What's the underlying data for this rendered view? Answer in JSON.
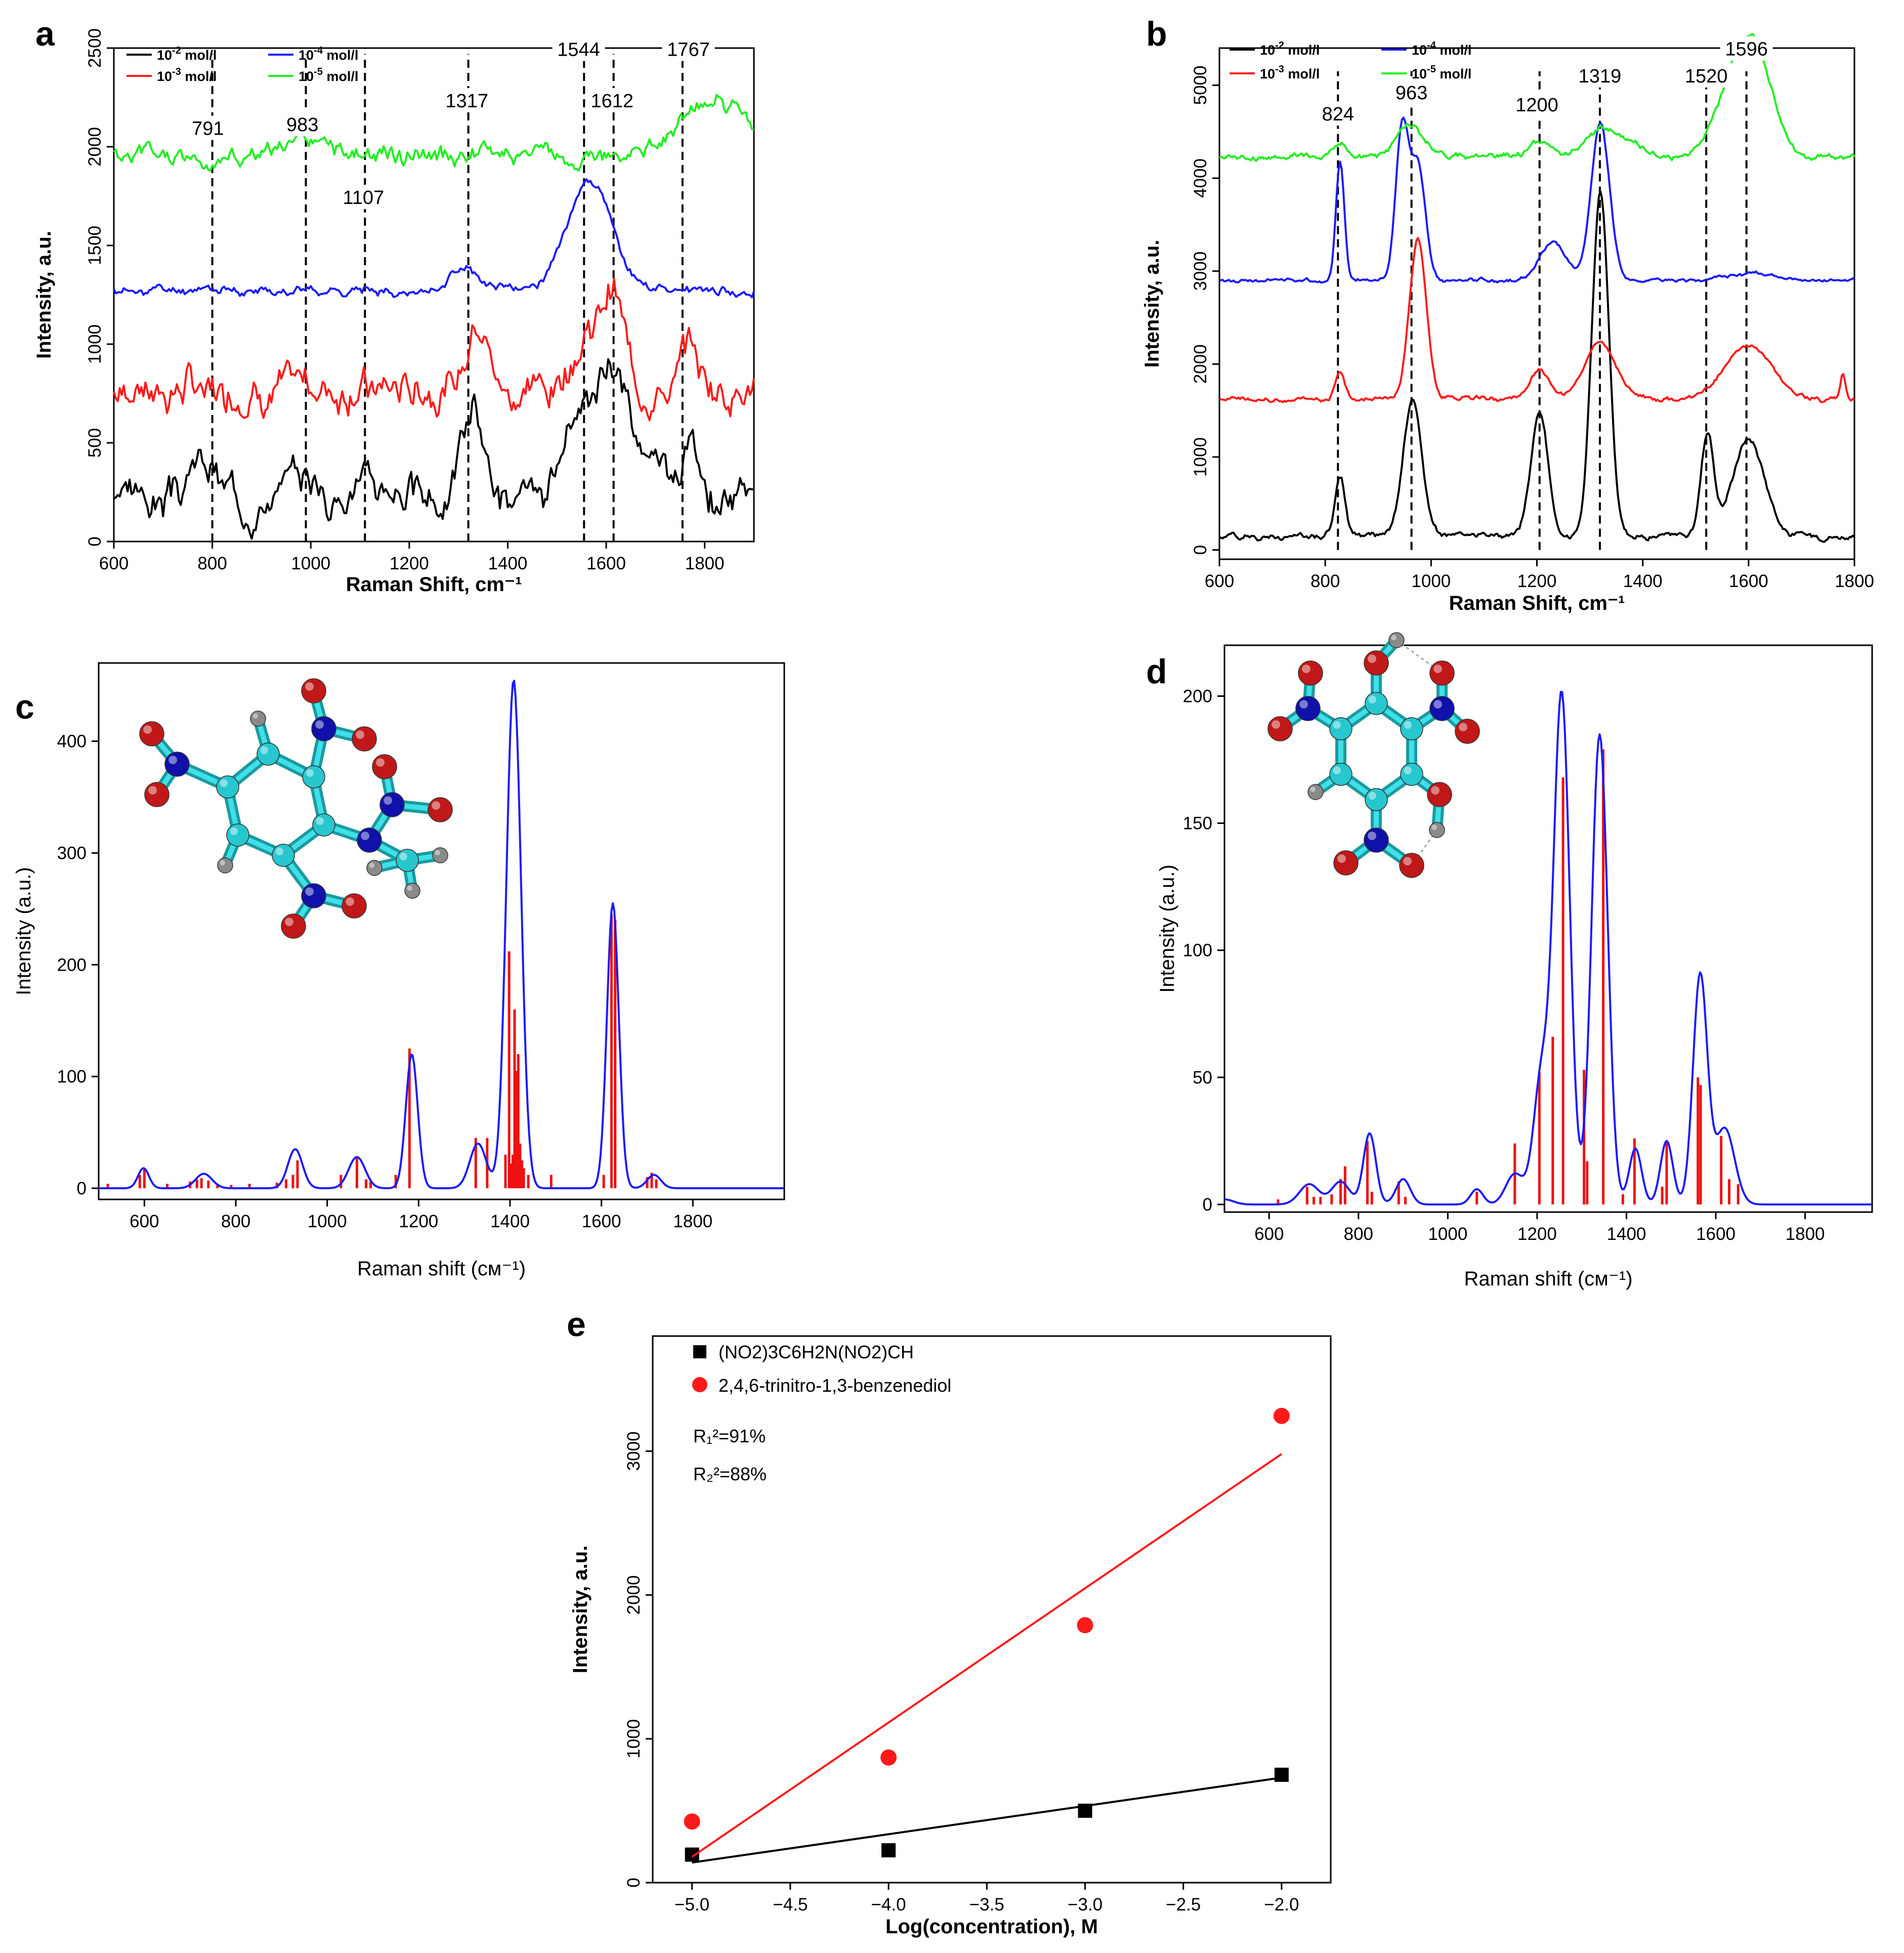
{
  "colors": {
    "black": "#000000",
    "red": "#ff1a1a",
    "blue": "#1a1aff",
    "green": "#22ee22",
    "stick": "#ee1111",
    "atomC": "#27c7cf",
    "atomN": "#1010aa",
    "atomO": "#c01818",
    "atomH": "#8a8a8a"
  },
  "chart_data": [
    {
      "panel": "a",
      "type": "line",
      "xlabel": "Raman Shift, cm⁻¹",
      "ylabel": "Intensity, a.u.",
      "xlim": [
        600,
        1900
      ],
      "ylim": [
        0,
        2500
      ],
      "xticks": [
        "600",
        "800",
        "1000",
        "1200",
        "1400",
        "1600",
        "1800"
      ],
      "yticks": [
        "0",
        "500",
        "1000",
        "1500",
        "2000",
        "2500"
      ],
      "legend": [
        {
          "base": "10",
          "exp": "-2",
          "unit": " mol/l",
          "color": "black"
        },
        {
          "base": "10",
          "exp": "-4",
          "unit": " mol/l",
          "color": "blue"
        },
        {
          "base": "10",
          "exp": "-3",
          "unit": " mol/l",
          "color": "red"
        },
        {
          "base": "10",
          "exp": "-5",
          "unit": " mol/l",
          "color": "green"
        }
      ],
      "peak_lines": [
        800,
        990,
        1110,
        1320,
        1555,
        1615,
        1755
      ],
      "peak_labels": [
        {
          "text": "791",
          "x": 791,
          "y": 2060
        },
        {
          "text": "983",
          "x": 983,
          "y": 2080
        },
        {
          "text": "1107",
          "x": 1107,
          "y": 1710
        },
        {
          "text": "1317",
          "x": 1317,
          "y": 2200
        },
        {
          "text": "1544",
          "x": 1544,
          "y": 2460
        },
        {
          "text": "1612",
          "x": 1612,
          "y": 2200
        },
        {
          "text": "1767",
          "x": 1767,
          "y": 2460
        }
      ],
      "series": [
        {
          "name": "10-2 mol/l",
          "color": "black",
          "base": 220,
          "noise": 120,
          "seed": 3,
          "peaks": [
            [
              780,
              180,
              25
            ],
            [
              990,
              130,
              30
            ],
            [
              1110,
              120,
              30
            ],
            [
              1330,
              480,
              22
            ],
            [
              1570,
              460,
              40
            ],
            [
              1620,
              430,
              25
            ],
            [
              1700,
              200,
              40
            ],
            [
              1770,
              280,
              15
            ]
          ]
        },
        {
          "name": "10-3 mol/l",
          "color": "red",
          "base": 780,
          "noise": 120,
          "seed": 7,
          "peaks": [
            [
              1340,
              420,
              20
            ],
            [
              1560,
              300,
              30
            ],
            [
              1615,
              420,
              20
            ],
            [
              1770,
              220,
              15
            ]
          ]
        },
        {
          "name": "10-4 mol/l",
          "color": "blue",
          "base": 1270,
          "noise": 30,
          "seed": 11,
          "peaks": [
            [
              1310,
              120,
              25
            ],
            [
              1565,
              560,
              45
            ]
          ]
        },
        {
          "name": "10-5 mol/l",
          "color": "green",
          "base": 1950,
          "noise": 60,
          "seed": 5,
          "peaks": [
            [
              1000,
              60,
              40
            ],
            [
              1420,
              40,
              50
            ],
            [
              1780,
              150,
              60
            ],
            [
              1850,
              170,
              60
            ]
          ]
        }
      ]
    },
    {
      "panel": "b",
      "type": "line",
      "xlabel": "Raman Shift, cm⁻¹",
      "ylabel": "Intensity, a.u.",
      "xlim": [
        600,
        1800
      ],
      "ylim": [
        -100,
        5400
      ],
      "xticks": [
        "600",
        "800",
        "1000",
        "1200",
        "1400",
        "1600",
        "1800"
      ],
      "yticks": [
        "0",
        "1000",
        "2000",
        "3000",
        "4000",
        "5000"
      ],
      "legend": [
        {
          "base": "10",
          "exp": "-2",
          "unit": " mol/l",
          "color": "black"
        },
        {
          "base": "10",
          "exp": "-4",
          "unit": " mol/l",
          "color": "blue"
        },
        {
          "base": "10",
          "exp": "-3",
          "unit": " mol/l",
          "color": "red"
        },
        {
          "base": "10",
          "exp": "-5",
          "unit": " mol/l",
          "color": "green"
        }
      ],
      "peak_lines": [
        824,
        963,
        1205,
        1319,
        1520,
        1596
      ],
      "peak_labels": [
        {
          "text": "824",
          "x": 824,
          "y": 4620
        },
        {
          "text": "963",
          "x": 963,
          "y": 4850
        },
        {
          "text": "1200",
          "x": 1200,
          "y": 4720
        },
        {
          "text": "1319",
          "x": 1319,
          "y": 5030
        },
        {
          "text": "1520",
          "x": 1520,
          "y": 5030
        },
        {
          "text": "1596",
          "x": 1596,
          "y": 5320
        }
      ],
      "series": [
        {
          "name": "10-2 mol/l",
          "color": "black",
          "base": 150,
          "noise": 40,
          "seed": 2,
          "peaks": [
            [
              828,
              650,
              9
            ],
            [
              965,
              1450,
              18
            ],
            [
              1205,
              1350,
              16
            ],
            [
              1320,
              3700,
              16
            ],
            [
              1522,
              1100,
              12
            ],
            [
              1600,
              1050,
              30
            ]
          ]
        },
        {
          "name": "10-3 mol/l",
          "color": "red",
          "base": 1620,
          "noise": 30,
          "seed": 9,
          "peaks": [
            [
              828,
              300,
              9
            ],
            [
              975,
              1720,
              16
            ],
            [
              1205,
              320,
              18
            ],
            [
              1320,
              620,
              30
            ],
            [
              1600,
              580,
              45
            ],
            [
              1778,
              280,
              5
            ]
          ]
        },
        {
          "name": "10-4 mol/l",
          "color": "blue",
          "base": 2900,
          "noise": 25,
          "seed": 13,
          "peaks": [
            [
              828,
              1300,
              8
            ],
            [
              945,
              1600,
              12
            ],
            [
              975,
              1250,
              14
            ],
            [
              1230,
              400,
              25
            ],
            [
              1320,
              1700,
              17
            ],
            [
              1600,
              80,
              40
            ]
          ]
        },
        {
          "name": "10-5 mol/l",
          "color": "green",
          "base": 4230,
          "noise": 40,
          "seed": 4,
          "peaks": [
            [
              828,
              160,
              12
            ],
            [
              960,
              350,
              25
            ],
            [
              1205,
              170,
              20
            ],
            [
              1320,
              300,
              28
            ],
            [
              1380,
              120,
              25
            ],
            [
              1580,
              750,
              40
            ],
            [
              1615,
              720,
              35
            ]
          ]
        }
      ]
    },
    {
      "panel": "c",
      "type": "line",
      "xlabel": "Raman shift (cм⁻¹)",
      "ylabel": "Intensity (a.u.)",
      "xlim": [
        500,
        2000
      ],
      "ylim": [
        -10,
        470
      ],
      "xticks": [
        "600",
        "800",
        "1000",
        "1200",
        "1400",
        "1600",
        "1800"
      ],
      "yticks": [
        "0",
        "100",
        "200",
        "300",
        "400"
      ],
      "envelope": [
        [
          598,
          18,
          12
        ],
        [
          730,
          13,
          18
        ],
        [
          930,
          35,
          16
        ],
        [
          1065,
          28,
          18
        ],
        [
          1185,
          120,
          13
        ],
        [
          1330,
          40,
          18
        ],
        [
          1408,
          455,
          16
        ],
        [
          1625,
          255,
          13
        ],
        [
          1715,
          12,
          15
        ]
      ],
      "sticks": [
        [
          520,
          4
        ],
        [
          590,
          12
        ],
        [
          600,
          18
        ],
        [
          650,
          4
        ],
        [
          700,
          6
        ],
        [
          715,
          8
        ],
        [
          725,
          9
        ],
        [
          740,
          7
        ],
        [
          760,
          4
        ],
        [
          790,
          3
        ],
        [
          830,
          4
        ],
        [
          890,
          5
        ],
        [
          910,
          8
        ],
        [
          925,
          12
        ],
        [
          935,
          25
        ],
        [
          1030,
          12
        ],
        [
          1065,
          28
        ],
        [
          1085,
          8
        ],
        [
          1095,
          6
        ],
        [
          1150,
          12
        ],
        [
          1180,
          125
        ],
        [
          1325,
          45
        ],
        [
          1350,
          45
        ],
        [
          1390,
          30
        ],
        [
          1398,
          212
        ],
        [
          1402,
          22
        ],
        [
          1406,
          30
        ],
        [
          1410,
          160
        ],
        [
          1414,
          105
        ],
        [
          1418,
          120
        ],
        [
          1422,
          40
        ],
        [
          1426,
          25
        ],
        [
          1430,
          18
        ],
        [
          1440,
          12
        ],
        [
          1490,
          12
        ],
        [
          1605,
          12
        ],
        [
          1622,
          245
        ],
        [
          1630,
          240
        ],
        [
          1700,
          10
        ],
        [
          1710,
          14
        ],
        [
          1720,
          8
        ]
      ]
    },
    {
      "panel": "d",
      "type": "line",
      "xlabel": "Raman shift (cм⁻¹)",
      "ylabel": "Intensity (a.u.)",
      "xlim": [
        500,
        1950
      ],
      "ylim": [
        -3,
        220
      ],
      "xticks": [
        "600",
        "800",
        "1000",
        "1200",
        "1400",
        "1600",
        "1800"
      ],
      "yticks": [
        "0",
        "50",
        "100",
        "150",
        "200"
      ],
      "envelope": [
        [
          500,
          2,
          20
        ],
        [
          690,
          8,
          22
        ],
        [
          760,
          9,
          20
        ],
        [
          825,
          28,
          14
        ],
        [
          900,
          10,
          16
        ],
        [
          1065,
          6,
          14
        ],
        [
          1150,
          12,
          20
        ],
        [
          1210,
          50,
          18
        ],
        [
          1255,
          200,
          18
        ],
        [
          1340,
          185,
          18
        ],
        [
          1420,
          22,
          14
        ],
        [
          1490,
          25,
          14
        ],
        [
          1565,
          90,
          16
        ],
        [
          1620,
          30,
          22
        ]
      ],
      "sticks": [
        [
          620,
          2
        ],
        [
          685,
          7
        ],
        [
          700,
          3
        ],
        [
          715,
          3
        ],
        [
          740,
          4
        ],
        [
          760,
          10
        ],
        [
          770,
          15
        ],
        [
          820,
          25
        ],
        [
          830,
          5
        ],
        [
          890,
          9
        ],
        [
          905,
          3
        ],
        [
          1065,
          5
        ],
        [
          1150,
          24
        ],
        [
          1205,
          52
        ],
        [
          1235,
          66
        ],
        [
          1258,
          168
        ],
        [
          1305,
          53
        ],
        [
          1312,
          17
        ],
        [
          1348,
          179
        ],
        [
          1392,
          4
        ],
        [
          1418,
          26
        ],
        [
          1480,
          7
        ],
        [
          1490,
          25
        ],
        [
          1560,
          50
        ],
        [
          1566,
          47
        ],
        [
          1612,
          27
        ],
        [
          1630,
          10
        ],
        [
          1650,
          8
        ]
      ]
    },
    {
      "panel": "e",
      "type": "scatter",
      "xlabel": "Log(concentration), M",
      "ylabel": "Intensity, a.u.",
      "xlim": [
        -5.2,
        -1.75
      ],
      "ylim": [
        0,
        3800
      ],
      "xticks": [
        "−5.0",
        "−4.5",
        "−4.0",
        "−3.5",
        "−3.0",
        "−2.5",
        "−2.0"
      ],
      "yticks": [
        "0",
        "1000",
        "2000",
        "3000"
      ],
      "r2_1": "91%",
      "r2_2": "88%",
      "series": [
        {
          "name": "(NO2)3C6H2N(NO2)CH",
          "color": "black",
          "marker": "square",
          "x": [
            -5,
            -4,
            -3,
            -2
          ],
          "y": [
            195,
            225,
            500,
            750
          ],
          "fit": [
            [
              -5,
              140
            ],
            [
              -2,
              730
            ]
          ]
        },
        {
          "name": "2,4,6-trinitro-1,3-benzenediol",
          "color": "red",
          "marker": "circle",
          "x": [
            -5,
            -4,
            -3,
            -2
          ],
          "y": [
            425,
            870,
            1790,
            3245
          ],
          "fit": [
            [
              -5,
              180
            ],
            [
              -2,
              2980
            ]
          ]
        }
      ]
    }
  ]
}
